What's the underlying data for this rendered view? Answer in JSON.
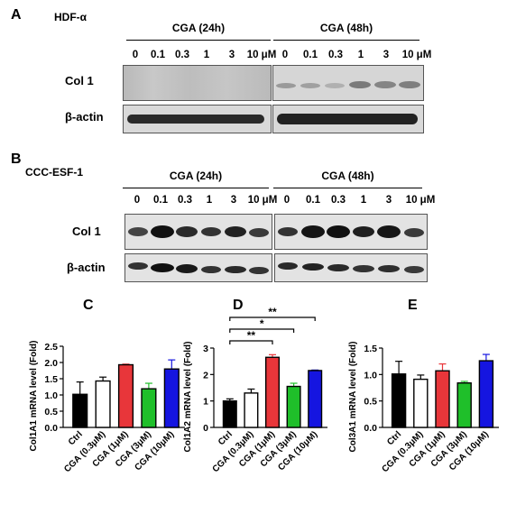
{
  "panel_A": {
    "letter": "A",
    "cell_line": "HDF-α",
    "cond_24h": "CGA (24h)",
    "cond_48h": "CGA (48h)",
    "doses_24h": [
      "0",
      "0.1",
      "0.3",
      "1",
      "3",
      "10 μM"
    ],
    "doses_48h": [
      "0",
      "0.1",
      "0.3",
      "1",
      "3",
      "10 μM"
    ],
    "row1": "Col 1",
    "row2": "β-actin"
  },
  "panel_B": {
    "letter": "B",
    "cell_line": "CCC-ESF-1",
    "cond_24h": "CGA (24h)",
    "cond_48h": "CGA (48h)",
    "doses_24h": [
      "0",
      "0.1",
      "0.3",
      "1",
      "3",
      "10 μM"
    ],
    "doses_48h": [
      "0",
      "0.1",
      "0.3",
      "1",
      "3",
      "10 μM"
    ],
    "row1": "Col 1",
    "row2": "β-actin"
  },
  "chart_data": [
    {
      "letter": "C",
      "type": "bar",
      "categories": [
        "Ctrl",
        "CGA (0.3μM)",
        "CGA (1μM)",
        "CGA (3μM)",
        "CGA (10μM)"
      ],
      "values": [
        1.02,
        1.43,
        1.93,
        1.19,
        1.8
      ],
      "errors": [
        0.38,
        0.12,
        0.02,
        0.17,
        0.28
      ],
      "colors": [
        "#000000",
        "#ffffff",
        "#e8363a",
        "#1fbf2a",
        "#1515e0"
      ],
      "ylabel": "Col1A1 mRNA level (Fold)",
      "ylim": [
        0,
        2.5
      ],
      "ytick_labels": [
        "0.0",
        "0.5",
        "1.0",
        "1.5",
        "2.0",
        "2.5"
      ],
      "significance": []
    },
    {
      "letter": "D",
      "type": "bar",
      "categories": [
        "Ctrl",
        "CGA (0.3μM)",
        "CGA (1μM)",
        "CGA (3μM)",
        "CGA (10μM)"
      ],
      "values": [
        1.0,
        1.3,
        2.65,
        1.55,
        2.15
      ],
      "errors": [
        0.08,
        0.15,
        0.1,
        0.12,
        0.02
      ],
      "colors": [
        "#000000",
        "#ffffff",
        "#e8363a",
        "#1fbf2a",
        "#1515e0"
      ],
      "ylabel": "Col1A2 mRNA level (Fold)",
      "ylim": [
        0,
        3
      ],
      "ytick_labels": [
        "0",
        "1",
        "2",
        "3"
      ],
      "significance": [
        {
          "from": 0,
          "to": 4,
          "label": "**"
        },
        {
          "from": 0,
          "to": 3,
          "label": "*"
        },
        {
          "from": 0,
          "to": 2,
          "label": "**"
        }
      ]
    },
    {
      "letter": "E",
      "type": "bar",
      "categories": [
        "Ctrl",
        "CGA (0.3μM)",
        "CGA (1μM)",
        "CGA (3μM)",
        "CGA (10μM)"
      ],
      "values": [
        1.01,
        0.91,
        1.07,
        0.84,
        1.26
      ],
      "errors": [
        0.24,
        0.08,
        0.13,
        0.03,
        0.12
      ],
      "colors": [
        "#000000",
        "#ffffff",
        "#e8363a",
        "#1fbf2a",
        "#1515e0"
      ],
      "ylabel": "Col3A1 mRNA level (Fold)",
      "ylim": [
        0,
        1.5
      ],
      "ytick_labels": [
        "0.0",
        "0.5",
        "1.0",
        "1.5"
      ],
      "significance": []
    }
  ]
}
